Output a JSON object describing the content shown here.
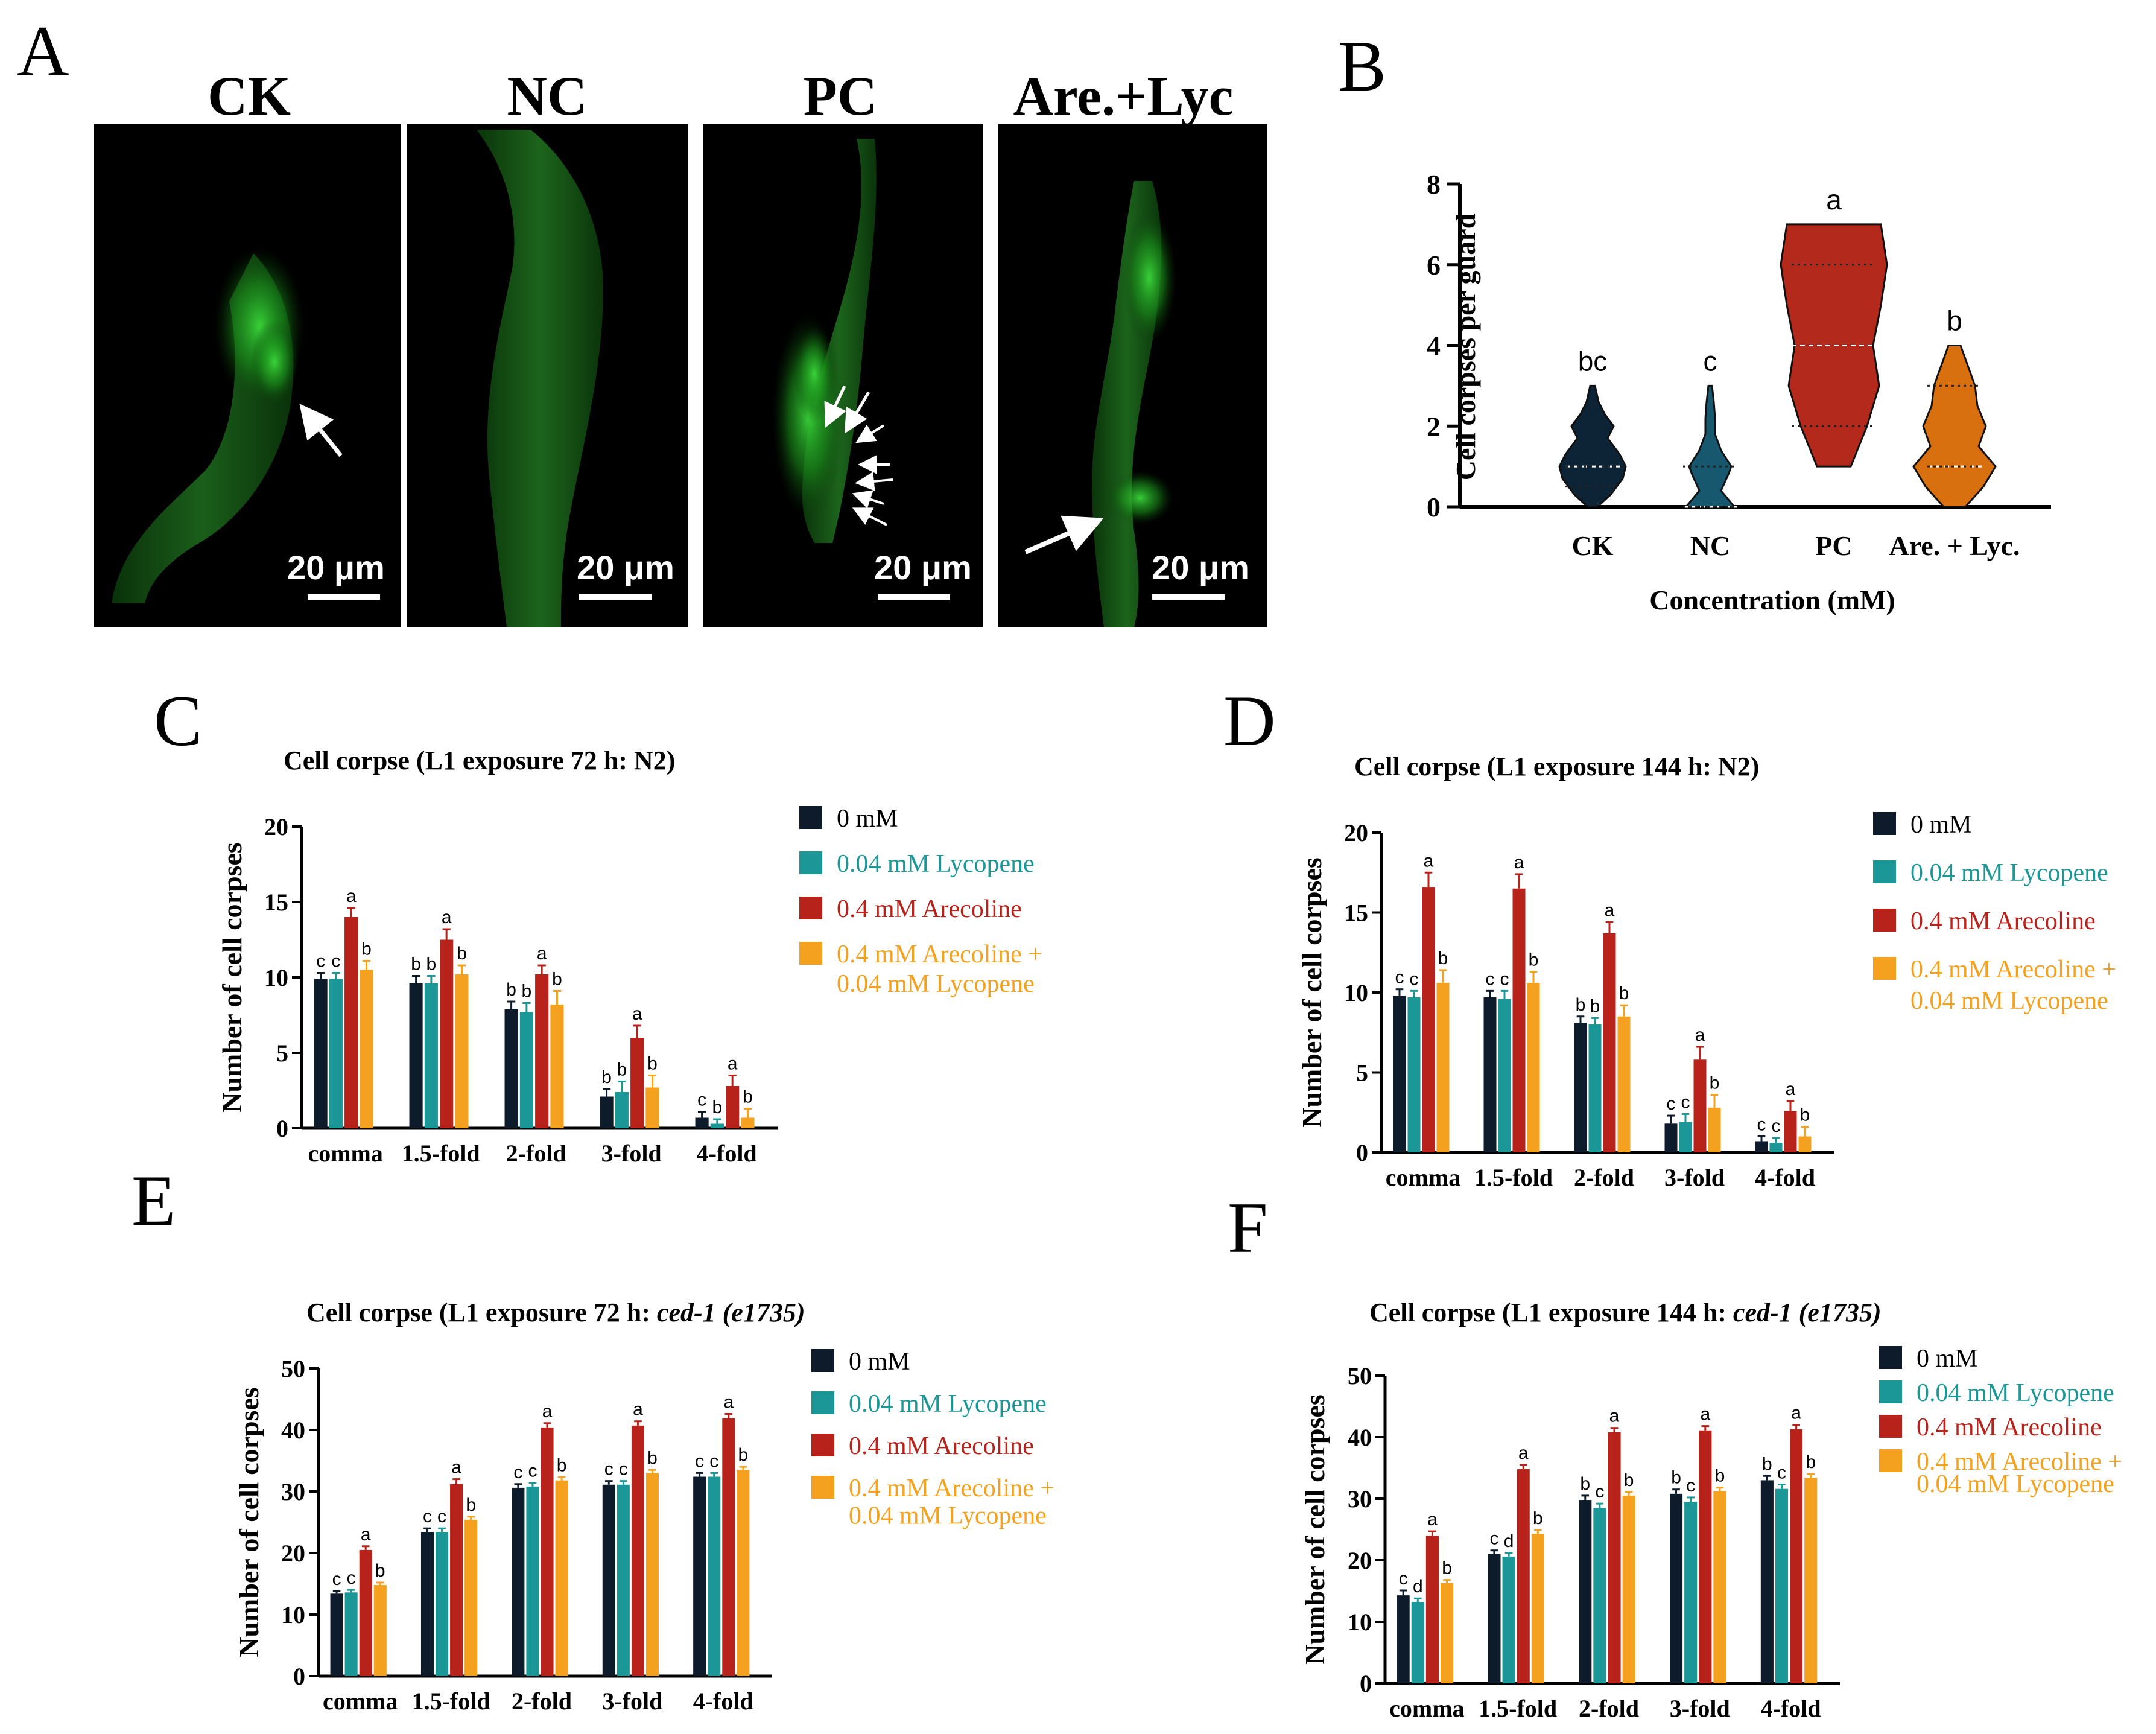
{
  "panel_A": {
    "label": "A",
    "images": [
      {
        "title": "CK",
        "scale": "20 μm"
      },
      {
        "title": "NC",
        "scale": "20 μm"
      },
      {
        "title": "PC",
        "scale": "20 μm"
      },
      {
        "title": "Are.+Lyc",
        "scale": "20 μm"
      }
    ]
  },
  "colors": {
    "c0": "#0d1b2a",
    "c1": "#1b9797",
    "c2": "#b7221b",
    "c3": "#f3a11e",
    "violin_CK": "#0d2436",
    "violin_NC": "#17586e",
    "violin_PC": "#b32a1c",
    "violin_AL": "#d9700f"
  },
  "chart_data": [
    {
      "panel": "B",
      "type": "violin",
      "categories": [
        "CK",
        "NC",
        "PC",
        "Are. + Lyc."
      ],
      "ylabel": "Cell corpses per guard",
      "xlabel": "Concentration (mM)",
      "ylim": [
        0,
        8
      ],
      "yticks": [
        0,
        2,
        4,
        6,
        8
      ],
      "medians": [
        1,
        0,
        4,
        1
      ],
      "quartiles": [
        [
          0.5,
          1
        ],
        [
          0,
          1
        ],
        [
          2,
          6
        ],
        [
          1,
          3
        ]
      ],
      "ranges": [
        [
          0,
          3
        ],
        [
          0,
          3
        ],
        [
          1,
          7
        ],
        [
          0,
          4
        ]
      ],
      "significance": [
        "bc",
        "c",
        "a",
        "b"
      ]
    },
    {
      "panel": "C",
      "type": "bar",
      "title": "Cell corpse (L1 exposure 72 h: N2)",
      "ylabel": "Number of cell corpses",
      "categories": [
        "comma",
        "1.5-fold",
        "2-fold",
        "3-fold",
        "4-fold"
      ],
      "ylim": [
        0,
        20
      ],
      "yticks": [
        0,
        5,
        10,
        15,
        20
      ],
      "series": [
        {
          "name": "0 mM",
          "values": [
            9.9,
            9.6,
            7.9,
            2.1,
            0.7
          ],
          "errors": [
            0.4,
            0.5,
            0.5,
            0.5,
            0.4
          ],
          "letters": [
            "c",
            "b",
            "b",
            "b",
            "c"
          ]
        },
        {
          "name": "0.04 mM Lycopene",
          "values": [
            9.9,
            9.6,
            7.7,
            2.4,
            0.3
          ],
          "errors": [
            0.4,
            0.5,
            0.6,
            0.7,
            0.3
          ],
          "letters": [
            "c",
            "b",
            "b",
            "b",
            "b"
          ]
        },
        {
          "name": "0.4 mM Arecoline",
          "values": [
            14.0,
            12.5,
            10.2,
            6.0,
            2.8
          ],
          "errors": [
            0.6,
            0.7,
            0.6,
            0.8,
            0.7
          ],
          "letters": [
            "a",
            "a",
            "a",
            "a",
            "a"
          ]
        },
        {
          "name": "0.4 mM Arecoline + 0.04 mM Lycopene",
          "values": [
            10.5,
            10.2,
            8.2,
            2.7,
            0.7
          ],
          "errors": [
            0.6,
            0.6,
            0.9,
            0.8,
            0.6
          ],
          "letters": [
            "b",
            "b",
            "b",
            "b",
            "b"
          ]
        }
      ]
    },
    {
      "panel": "D",
      "type": "bar",
      "title": "Cell corpse (L1 exposure 144 h: N2)",
      "ylabel": "Number of cell corpses",
      "categories": [
        "comma",
        "1.5-fold",
        "2-fold",
        "3-fold",
        "4-fold"
      ],
      "ylim": [
        0,
        20
      ],
      "yticks": [
        0,
        5,
        10,
        15,
        20
      ],
      "series": [
        {
          "name": "0 mM",
          "values": [
            9.8,
            9.7,
            8.1,
            1.8,
            0.7
          ],
          "errors": [
            0.4,
            0.4,
            0.4,
            0.5,
            0.3
          ],
          "letters": [
            "c",
            "c",
            "b",
            "c",
            "c"
          ]
        },
        {
          "name": "0.04 mM Lycopene",
          "values": [
            9.7,
            9.6,
            8.0,
            1.9,
            0.6
          ],
          "errors": [
            0.4,
            0.5,
            0.4,
            0.5,
            0.3
          ],
          "letters": [
            "c",
            "c",
            "b",
            "c",
            "c"
          ]
        },
        {
          "name": "0.4 mM Arecoline",
          "values": [
            16.6,
            16.5,
            13.7,
            5.8,
            2.6
          ],
          "errors": [
            0.9,
            0.9,
            0.7,
            0.8,
            0.6
          ],
          "letters": [
            "a",
            "a",
            "a",
            "a",
            "a"
          ]
        },
        {
          "name": "0.4 mM Arecoline + 0.04 mM Lycopene",
          "values": [
            10.6,
            10.6,
            8.5,
            2.8,
            1.0
          ],
          "errors": [
            0.8,
            0.7,
            0.7,
            0.8,
            0.6
          ],
          "letters": [
            "b",
            "b",
            "b",
            "b",
            "b"
          ]
        }
      ]
    },
    {
      "panel": "E",
      "type": "bar",
      "title": "Cell corpse (L1 exposure 72 h: ",
      "title_italic": "ced-1 (e1735)",
      "ylabel": "Number of cell corpses",
      "categories": [
        "comma",
        "1.5-fold",
        "2-fold",
        "3-fold",
        "4-fold"
      ],
      "ylim": [
        0,
        50
      ],
      "yticks": [
        0,
        10,
        20,
        30,
        40,
        50
      ],
      "series": [
        {
          "name": "0 mM",
          "values": [
            13.4,
            23.4,
            30.6,
            31.1,
            32.4
          ],
          "errors": [
            0.4,
            0.6,
            0.6,
            0.6,
            0.6
          ],
          "letters": [
            "c",
            "c",
            "c",
            "c",
            "c"
          ]
        },
        {
          "name": "0.04 mM Lycopene",
          "values": [
            13.6,
            23.4,
            30.8,
            31.1,
            32.4
          ],
          "errors": [
            0.4,
            0.6,
            0.6,
            0.6,
            0.6
          ],
          "letters": [
            "c",
            "c",
            "c",
            "c",
            "c"
          ]
        },
        {
          "name": "0.4 mM Arecoline",
          "values": [
            20.5,
            31.2,
            40.4,
            40.7,
            41.9
          ],
          "errors": [
            0.6,
            0.8,
            0.7,
            0.7,
            0.7
          ],
          "letters": [
            "a",
            "a",
            "a",
            "a",
            "a"
          ]
        },
        {
          "name": "0.4 mM Arecoline + 0.04 mM Lycopene",
          "values": [
            14.8,
            25.4,
            31.8,
            33.0,
            33.5
          ],
          "errors": [
            0.4,
            0.5,
            0.5,
            0.5,
            0.5
          ],
          "letters": [
            "b",
            "b",
            "b",
            "b",
            "b"
          ]
        }
      ]
    },
    {
      "panel": "F",
      "type": "bar",
      "title": "Cell corpse (L1 exposure 144 h: ",
      "title_italic": "ced-1 (e1735)",
      "ylabel": "Number of cell corpses",
      "categories": [
        "comma",
        "1.5-fold",
        "2-fold",
        "3-fold",
        "4-fold"
      ],
      "ylim": [
        0,
        50
      ],
      "yticks": [
        0,
        10,
        20,
        30,
        40,
        50
      ],
      "series": [
        {
          "name": "0 mM",
          "values": [
            14.3,
            21.0,
            29.8,
            30.8,
            33.0
          ],
          "errors": [
            0.8,
            0.6,
            0.7,
            0.7,
            0.7
          ],
          "letters": [
            "c",
            "c",
            "b",
            "b",
            "b"
          ]
        },
        {
          "name": "0.04 mM Lycopene",
          "values": [
            13.2,
            20.6,
            28.5,
            29.5,
            31.6
          ],
          "errors": [
            0.6,
            0.6,
            0.7,
            0.7,
            0.7
          ],
          "letters": [
            "d",
            "d",
            "c",
            "c",
            "c"
          ]
        },
        {
          "name": "0.4 mM Arecoline",
          "values": [
            24.0,
            34.8,
            40.8,
            41.1,
            41.3
          ],
          "errors": [
            0.7,
            0.7,
            0.7,
            0.7,
            0.7
          ],
          "letters": [
            "a",
            "a",
            "a",
            "a",
            "a"
          ]
        },
        {
          "name": "0.4 mM Arecoline + 0.04 mM Lycopene",
          "values": [
            16.3,
            24.3,
            30.5,
            31.2,
            33.4
          ],
          "errors": [
            0.5,
            0.6,
            0.6,
            0.6,
            0.6
          ],
          "letters": [
            "b",
            "b",
            "b",
            "b",
            "b"
          ]
        }
      ]
    }
  ],
  "legend": [
    "0 mM",
    "0.04 mM Lycopene",
    "0.4 mM Arecoline",
    "0.4 mM Arecoline +",
    "0.04 mM Lycopene"
  ]
}
